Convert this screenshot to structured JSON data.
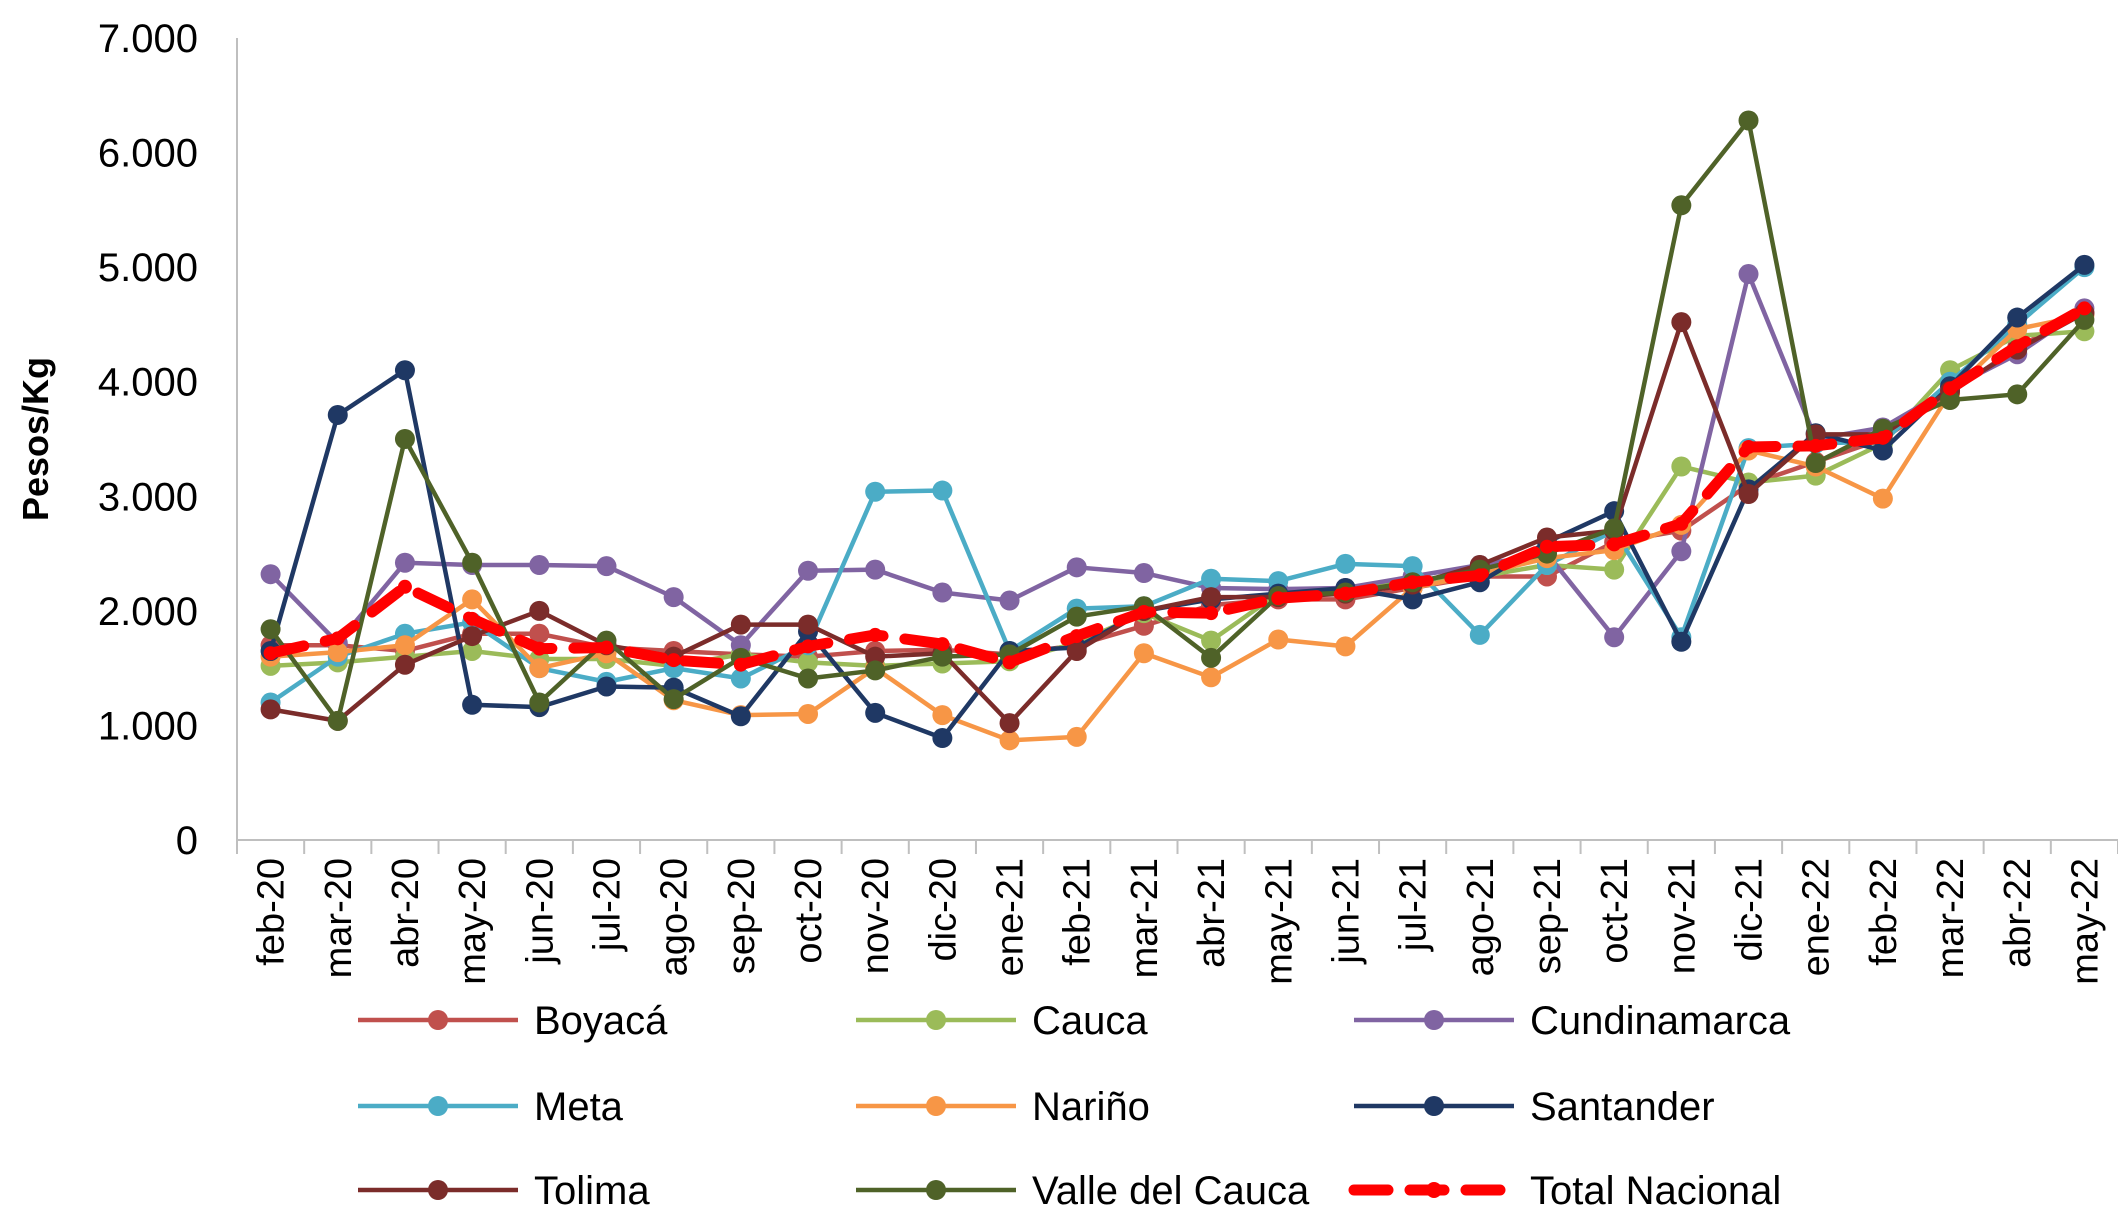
{
  "chart_data": {
    "type": "line",
    "ylabel": "Pesos/Kg",
    "xlabel": "",
    "ylim": [
      0,
      7000
    ],
    "yticks": [
      "0",
      "1.000",
      "2.000",
      "3.000",
      "4.000",
      "5.000",
      "6.000",
      "7.000"
    ],
    "grid": false,
    "legend_position": "bottom",
    "categories": [
      "feb-20",
      "mar-20",
      "abr-20",
      "may-20",
      "jun-20",
      "jul-20",
      "ago-20",
      "sep-20",
      "oct-20",
      "nov-20",
      "dic-20",
      "ene-21",
      "feb-21",
      "mar-21",
      "abr-21",
      "may-21",
      "jun-21",
      "jul-21",
      "ago-21",
      "sep-21",
      "oct-21",
      "nov-21",
      "dic-21",
      "ene-22",
      "feb-22",
      "mar-22",
      "abr-22",
      "may-22"
    ],
    "series": [
      {
        "name": "Boyacá",
        "color": "#c0504d",
        "style": "solid",
        "values": [
          1700,
          1700,
          1650,
          1800,
          1800,
          1680,
          1650,
          1620,
          1600,
          1650,
          1660,
          1620,
          1700,
          1870,
          2050,
          2100,
          2100,
          2200,
          2300,
          2300,
          2600,
          2700,
          3100,
          3300,
          3500,
          3900,
          4300,
          4600
        ]
      },
      {
        "name": "Cauca",
        "color": "#9bbb59",
        "style": "solid",
        "values": [
          1520,
          1550,
          1600,
          1650,
          1580,
          1580,
          1520,
          1620,
          1550,
          1520,
          1540,
          1560,
          1720,
          1980,
          1740,
          2150,
          2200,
          2250,
          2300,
          2400,
          2360,
          3260,
          3120,
          3180,
          3460,
          4100,
          4400,
          4440
        ]
      },
      {
        "name": "Cundinamarca",
        "color": "#8064a2",
        "style": "solid",
        "values": [
          2320,
          1720,
          2420,
          2400,
          2400,
          2390,
          2120,
          1700,
          2350,
          2360,
          2160,
          2090,
          2380,
          2330,
          2200,
          2190,
          2200,
          2300,
          2400,
          2500,
          1770,
          2520,
          4940,
          3500,
          3600,
          3940,
          4240,
          4640
        ]
      },
      {
        "name": "Meta",
        "color": "#4bacc6",
        "style": "solid",
        "values": [
          1200,
          1600,
          1800,
          1900,
          1500,
          1380,
          1500,
          1410,
          1700,
          3040,
          3050,
          1650,
          2020,
          2040,
          2280,
          2260,
          2410,
          2390,
          1790,
          2400,
          2700,
          1770,
          3420,
          3460,
          3480,
          4000,
          4500,
          5000
        ]
      },
      {
        "name": "Nariño",
        "color": "#f79646",
        "style": "solid",
        "values": [
          1600,
          1640,
          1700,
          2100,
          1500,
          1630,
          1220,
          1090,
          1100,
          1500,
          1090,
          870,
          900,
          1630,
          1420,
          1750,
          1690,
          2200,
          2320,
          2460,
          2530,
          2750,
          3400,
          3260,
          2980,
          3900,
          4460,
          4580
        ]
      },
      {
        "name": "Santander",
        "color": "#1f3864",
        "style": "solid",
        "values": [
          1650,
          3710,
          4100,
          1180,
          1160,
          1340,
          1330,
          1080,
          1820,
          1110,
          890,
          1650,
          1680,
          2000,
          2100,
          2150,
          2200,
          2100,
          2250,
          2600,
          2870,
          1730,
          3060,
          3550,
          3400,
          3960,
          4560,
          5020
        ]
      },
      {
        "name": "Tolima",
        "color": "#7b2c2a",
        "style": "solid",
        "values": [
          1140,
          1040,
          1530,
          1780,
          2000,
          1700,
          1600,
          1880,
          1880,
          1600,
          1630,
          1020,
          1650,
          2000,
          2120,
          2120,
          2150,
          2230,
          2400,
          2640,
          2700,
          4520,
          3020,
          3540,
          3540,
          3920,
          4280,
          4600
        ]
      },
      {
        "name": "Valle del Cauca",
        "color": "#4f6228",
        "style": "solid",
        "values": [
          1840,
          1040,
          3500,
          2420,
          1200,
          1740,
          1230,
          1590,
          1410,
          1480,
          1600,
          1620,
          1950,
          2040,
          1590,
          2130,
          2160,
          2250,
          2360,
          2500,
          2720,
          5540,
          6280,
          3290,
          3590,
          3840,
          3890,
          4540
        ]
      },
      {
        "name": "Total Nacional",
        "color": "#ff0000",
        "style": "dashed",
        "values": [
          1630,
          1760,
          2210,
          1930,
          1670,
          1680,
          1570,
          1530,
          1690,
          1790,
          1710,
          1550,
          1780,
          1990,
          1980,
          2110,
          2150,
          2250,
          2310,
          2560,
          2580,
          2760,
          3430,
          3440,
          3510,
          3940,
          4310,
          4640
        ]
      }
    ]
  }
}
